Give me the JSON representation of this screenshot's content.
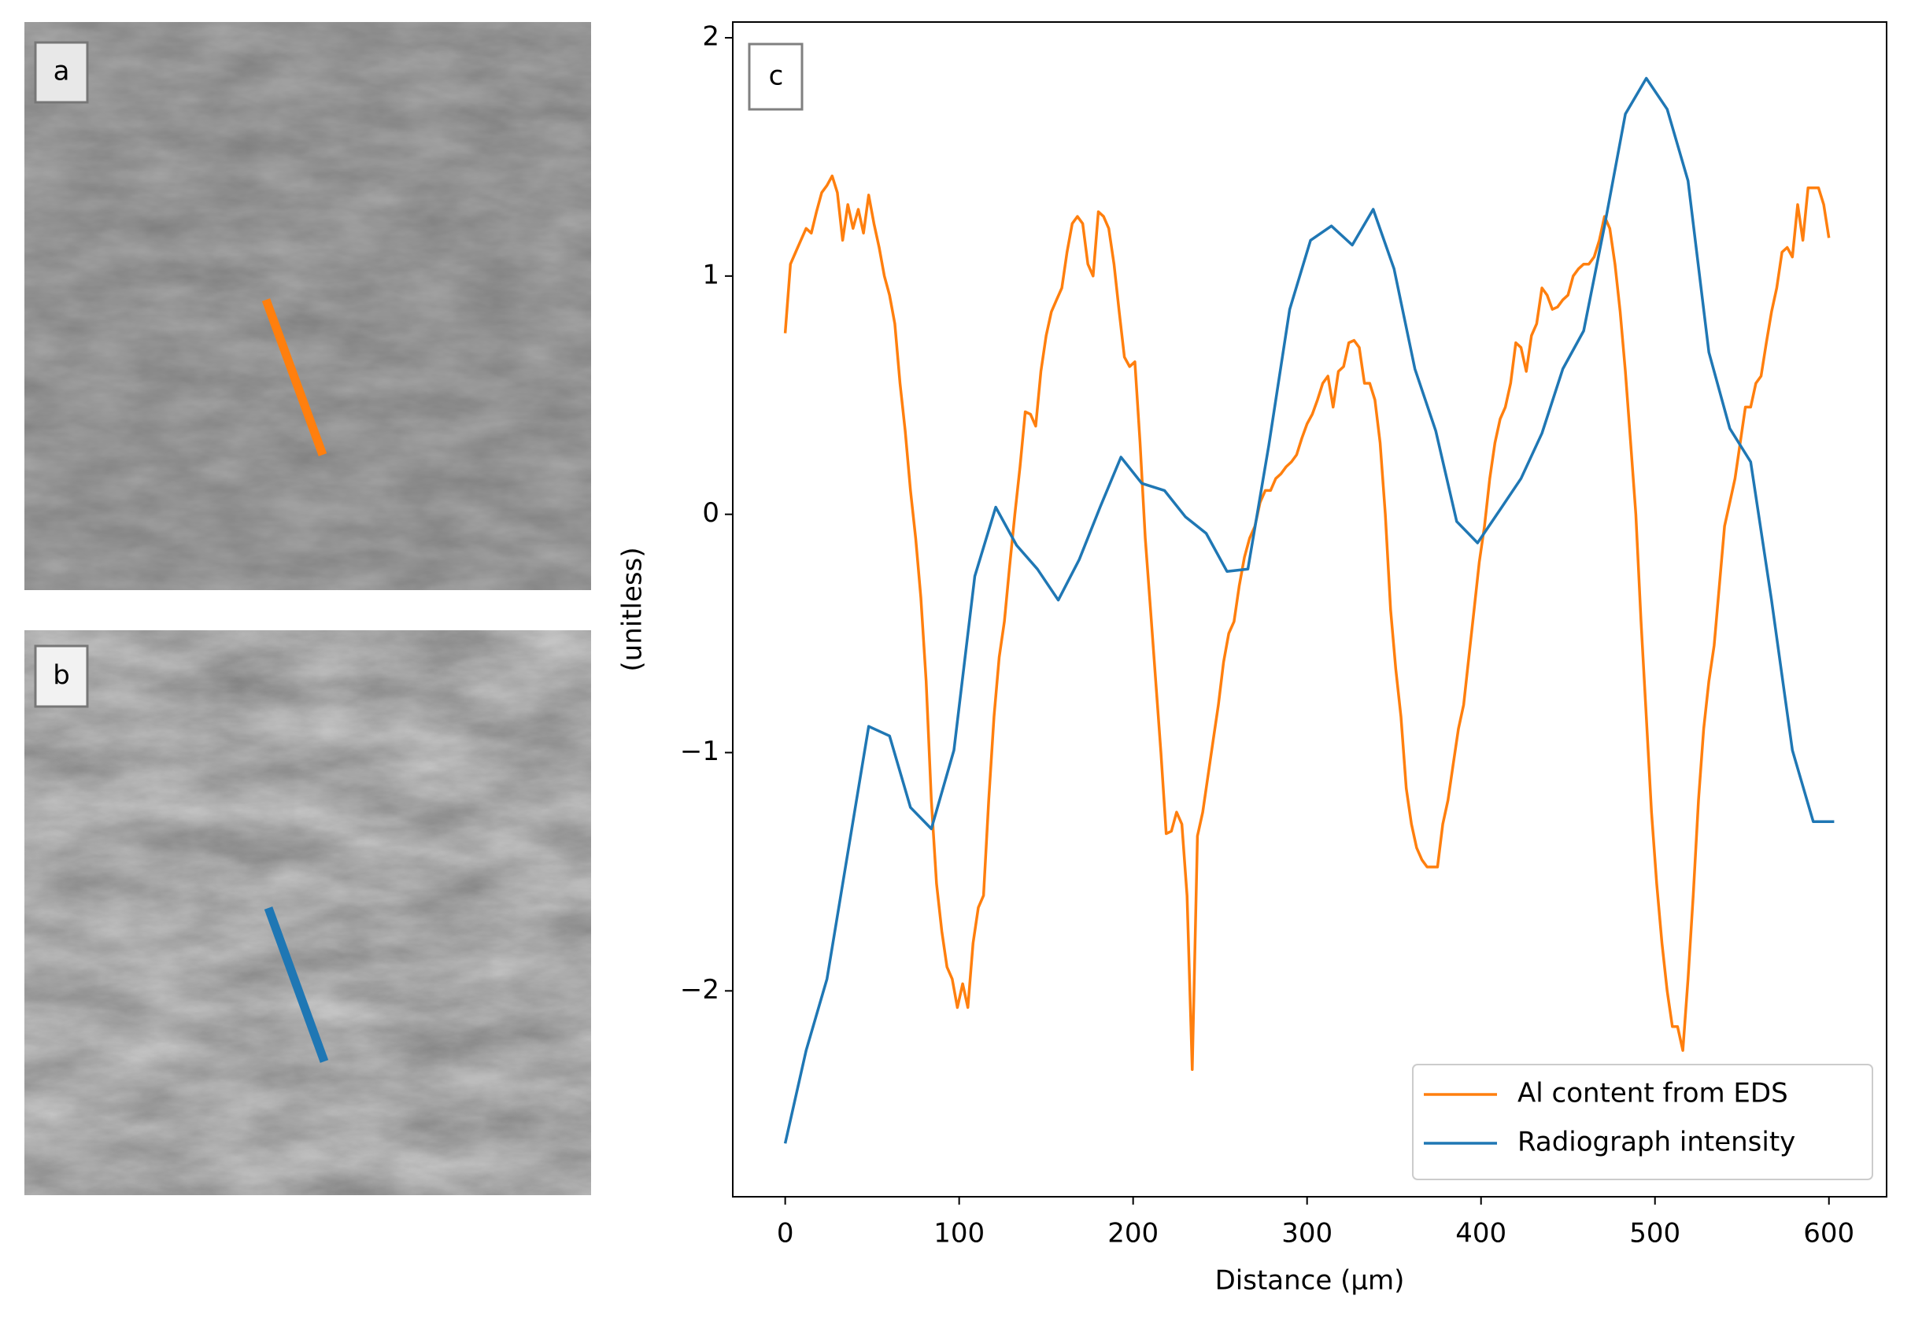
{
  "images": [
    {
      "label": "a"
    },
    {
      "label": "b"
    }
  ],
  "chart_data": {
    "type": "line",
    "panel_label": "c",
    "x_label": "Distance (μm)",
    "y_label": "(unitless)",
    "xlim": [
      -30.15,
      633.15
    ],
    "ylim": [
      -2.864,
      2.066
    ],
    "xticks": [
      0,
      100,
      200,
      300,
      400,
      500,
      600
    ],
    "yticks": [
      {
        "value": -2,
        "label": "−2"
      },
      {
        "value": -1,
        "label": "−1"
      },
      0,
      1,
      2
    ],
    "legend": "lower right",
    "series": [
      {
        "name": "Al content from EDS",
        "color": "#ff7f0e",
        "x": [
          0,
          3,
          6,
          9,
          12,
          15,
          18,
          21,
          24,
          27,
          30,
          33,
          36,
          39,
          42,
          45,
          48,
          51,
          54,
          57,
          60,
          63,
          66,
          69,
          72,
          75,
          78,
          81,
          84,
          87,
          90,
          93,
          96,
          99,
          102,
          105,
          108,
          111,
          114,
          117,
          120,
          123,
          126,
          129,
          132,
          135,
          138,
          141,
          144,
          147,
          150,
          153,
          156,
          159,
          162,
          165,
          168,
          171,
          174,
          177,
          180,
          183,
          186,
          189,
          192,
          195,
          198,
          201,
          204,
          207,
          210,
          213,
          216,
          219,
          222,
          225,
          228,
          231,
          234,
          237,
          240,
          243,
          246,
          249,
          252,
          255,
          258,
          261,
          264,
          267,
          270,
          273,
          276,
          279,
          282,
          285,
          288,
          291,
          294,
          297,
          300,
          303,
          306,
          309,
          312,
          315,
          318,
          321,
          324,
          327,
          330,
          333,
          336,
          339,
          342,
          345,
          348,
          351,
          354,
          357,
          360,
          363,
          366,
          369,
          372,
          375,
          378,
          381,
          384,
          387,
          390,
          393,
          396,
          399,
          402,
          405,
          408,
          411,
          414,
          417,
          420,
          423,
          426,
          429,
          432,
          435,
          438,
          441,
          444,
          447,
          450,
          453,
          456,
          459,
          462,
          465,
          468,
          471,
          474,
          477,
          480,
          483,
          486,
          489,
          492,
          495,
          498,
          501,
          504,
          507,
          510,
          513,
          516,
          519,
          522,
          525,
          528,
          531,
          534,
          537,
          540,
          543,
          546,
          549,
          552,
          555,
          558,
          561,
          564,
          567,
          570,
          573,
          576,
          579,
          582,
          585,
          588,
          591,
          594,
          597,
          600
        ],
        "values": [
          0.76,
          1.05,
          1.1,
          1.15,
          1.2,
          1.18,
          1.27,
          1.35,
          1.38,
          1.42,
          1.35,
          1.15,
          1.3,
          1.2,
          1.28,
          1.18,
          1.34,
          1.22,
          1.12,
          1.0,
          0.92,
          0.8,
          0.55,
          0.35,
          0.1,
          -0.1,
          -0.35,
          -0.7,
          -1.2,
          -1.55,
          -1.75,
          -1.9,
          -1.95,
          -2.07,
          -1.97,
          -2.07,
          -1.8,
          -1.65,
          -1.6,
          -1.2,
          -0.85,
          -0.6,
          -0.45,
          -0.22,
          0.0,
          0.2,
          0.43,
          0.42,
          0.37,
          0.6,
          0.75,
          0.85,
          0.9,
          0.95,
          1.1,
          1.22,
          1.25,
          1.22,
          1.05,
          1.0,
          1.27,
          1.25,
          1.2,
          1.05,
          0.85,
          0.66,
          0.62,
          0.64,
          0.3,
          -0.1,
          -0.4,
          -0.7,
          -1.0,
          -1.34,
          -1.33,
          -1.25,
          -1.3,
          -1.6,
          -2.33,
          -1.35,
          -1.25,
          -1.1,
          -0.95,
          -0.8,
          -0.62,
          -0.5,
          -0.45,
          -0.3,
          -0.18,
          -0.1,
          -0.05,
          0.05,
          0.1,
          0.1,
          0.15,
          0.17,
          0.2,
          0.22,
          0.25,
          0.32,
          0.38,
          0.42,
          0.48,
          0.55,
          0.58,
          0.45,
          0.6,
          0.62,
          0.72,
          0.73,
          0.7,
          0.55,
          0.55,
          0.48,
          0.3,
          0.0,
          -0.4,
          -0.65,
          -0.85,
          -1.15,
          -1.3,
          -1.4,
          -1.45,
          -1.48,
          -1.48,
          -1.48,
          -1.3,
          -1.2,
          -1.05,
          -0.9,
          -0.8,
          -0.6,
          -0.4,
          -0.2,
          -0.05,
          0.15,
          0.3,
          0.4,
          0.45,
          0.55,
          0.72,
          0.7,
          0.6,
          0.75,
          0.8,
          0.95,
          0.92,
          0.86,
          0.87,
          0.9,
          0.92,
          1.0,
          1.03,
          1.05,
          1.05,
          1.08,
          1.15,
          1.25,
          1.2,
          1.05,
          0.85,
          0.6,
          0.3,
          0.0,
          -0.45,
          -0.85,
          -1.25,
          -1.55,
          -1.8,
          -2.0,
          -2.15,
          -2.15,
          -2.25,
          -1.95,
          -1.6,
          -1.2,
          -0.9,
          -0.7,
          -0.55,
          -0.3,
          -0.05,
          0.05,
          0.15,
          0.3,
          0.45,
          0.45,
          0.55,
          0.58,
          0.72,
          0.85,
          0.95,
          1.1,
          1.12,
          1.08,
          1.3,
          1.15,
          1.37,
          1.37,
          1.37,
          1.3,
          1.16
        ]
      },
      {
        "name": "Radiograph intensity",
        "color": "#1f77b4",
        "x": [
          0,
          12,
          24,
          36,
          48,
          60,
          72,
          84,
          97,
          109,
          121,
          133,
          145,
          157,
          169,
          181,
          193,
          205,
          218,
          230,
          242,
          254,
          266,
          278,
          290,
          302,
          314,
          326,
          338,
          350,
          362,
          374,
          386,
          398,
          411,
          423,
          435,
          447,
          459,
          471,
          483,
          495,
          507,
          519,
          531,
          543,
          555,
          567,
          579,
          591,
          603
        ],
        "values": [
          -2.64,
          -2.25,
          -1.95,
          -1.42,
          -0.89,
          -0.93,
          -1.23,
          -1.32,
          -0.99,
          -0.26,
          0.03,
          -0.13,
          -0.23,
          -0.36,
          -0.19,
          0.03,
          0.24,
          0.13,
          0.1,
          -0.01,
          -0.08,
          -0.24,
          -0.23,
          0.29,
          0.86,
          1.15,
          1.21,
          1.13,
          1.28,
          1.03,
          0.61,
          0.35,
          -0.03,
          -0.12,
          0.02,
          0.15,
          0.34,
          0.61,
          0.77,
          1.21,
          1.68,
          1.83,
          1.7,
          1.4,
          0.68,
          0.36,
          0.22,
          -0.36,
          -0.99,
          -1.29,
          -1.29
        ]
      }
    ]
  }
}
